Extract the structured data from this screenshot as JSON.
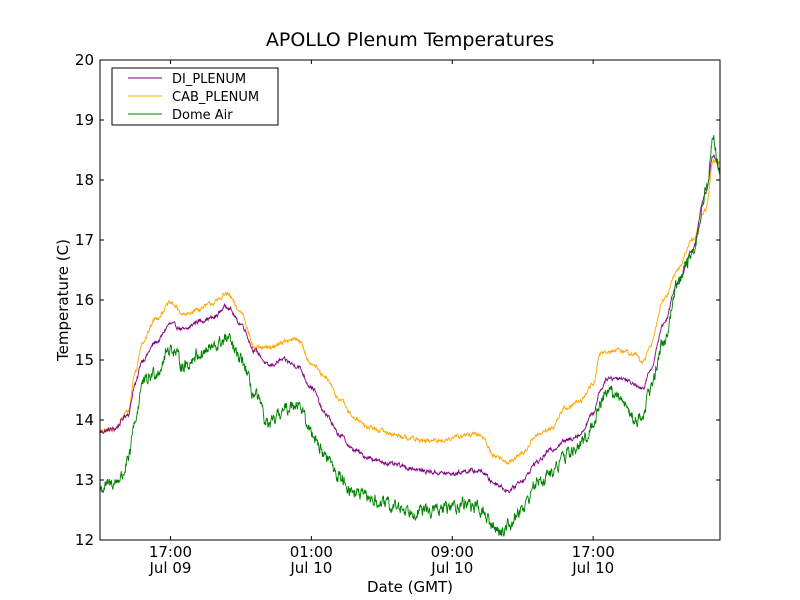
{
  "chart_data": {
    "type": "line",
    "title": "APOLLO Plenum Temperatures",
    "xlabel": "Date (GMT)",
    "ylabel": "Temperature (C)",
    "xlim": [
      0,
      44
    ],
    "ylim": [
      12,
      20
    ],
    "grid": false,
    "legend_position": "top-left",
    "y_ticks": [
      "12",
      "13",
      "14",
      "15",
      "16",
      "17",
      "18",
      "19",
      "20"
    ],
    "x_ticks": [
      {
        "x": 5,
        "line1": "17:00",
        "line2": "Jul 09"
      },
      {
        "x": 15,
        "line1": "01:00",
        "line2": "Jul 10"
      },
      {
        "x": 25,
        "line1": "09:00",
        "line2": "Jul 10"
      },
      {
        "x": 35,
        "line1": "17:00",
        "line2": "Jul 10"
      }
    ],
    "x_units": "hours since 12:00 GMT Jul 09",
    "series": [
      {
        "name": "DI_PLENUM",
        "color": "#800080",
        "noise": 0.03,
        "points": [
          [
            0,
            13.8
          ],
          [
            1,
            13.85
          ],
          [
            2,
            14.1
          ],
          [
            2.5,
            14.6
          ],
          [
            3,
            15.0
          ],
          [
            4,
            15.3
          ],
          [
            5,
            15.6
          ],
          [
            6,
            15.5
          ],
          [
            7,
            15.65
          ],
          [
            8,
            15.7
          ],
          [
            9,
            15.9
          ],
          [
            10,
            15.6
          ],
          [
            11,
            15.15
          ],
          [
            12,
            14.9
          ],
          [
            13,
            15.0
          ],
          [
            14,
            14.9
          ],
          [
            15,
            14.55
          ],
          [
            16,
            14.1
          ],
          [
            17,
            13.75
          ],
          [
            18,
            13.5
          ],
          [
            19,
            13.38
          ],
          [
            20,
            13.3
          ],
          [
            21,
            13.25
          ],
          [
            22,
            13.2
          ],
          [
            23,
            13.15
          ],
          [
            24,
            13.12
          ],
          [
            25,
            13.1
          ],
          [
            26,
            13.15
          ],
          [
            27,
            13.15
          ],
          [
            28,
            12.95
          ],
          [
            29,
            12.82
          ],
          [
            30,
            13.0
          ],
          [
            31,
            13.3
          ],
          [
            32,
            13.5
          ],
          [
            33,
            13.65
          ],
          [
            34,
            13.75
          ],
          [
            35,
            14.1
          ],
          [
            35.5,
            14.5
          ],
          [
            36,
            14.7
          ],
          [
            37,
            14.7
          ],
          [
            38,
            14.6
          ],
          [
            38.5,
            14.5
          ],
          [
            39,
            14.8
          ],
          [
            40,
            15.6
          ],
          [
            41,
            16.3
          ],
          [
            42,
            16.8
          ],
          [
            43,
            17.8
          ],
          [
            43.5,
            18.4
          ],
          [
            44,
            18.2
          ]
        ]
      },
      {
        "name": "CAB_PLENUM",
        "color": "#ffa500",
        "noise": 0.03,
        "points": [
          [
            0,
            13.8
          ],
          [
            1,
            13.85
          ],
          [
            2,
            14.15
          ],
          [
            2.5,
            14.8
          ],
          [
            3,
            15.3
          ],
          [
            4,
            15.7
          ],
          [
            5,
            15.95
          ],
          [
            6,
            15.75
          ],
          [
            7,
            15.85
          ],
          [
            8,
            15.95
          ],
          [
            9,
            16.1
          ],
          [
            10,
            15.8
          ],
          [
            11,
            15.2
          ],
          [
            12,
            15.2
          ],
          [
            13,
            15.3
          ],
          [
            14,
            15.35
          ],
          [
            15,
            14.95
          ],
          [
            16,
            14.7
          ],
          [
            17,
            14.35
          ],
          [
            18,
            14.05
          ],
          [
            19,
            13.88
          ],
          [
            20,
            13.82
          ],
          [
            21,
            13.75
          ],
          [
            22,
            13.7
          ],
          [
            23,
            13.65
          ],
          [
            24,
            13.65
          ],
          [
            25,
            13.7
          ],
          [
            26,
            13.75
          ],
          [
            27,
            13.75
          ],
          [
            28,
            13.4
          ],
          [
            29,
            13.3
          ],
          [
            30,
            13.45
          ],
          [
            31,
            13.75
          ],
          [
            32,
            13.85
          ],
          [
            33,
            14.2
          ],
          [
            34,
            14.3
          ],
          [
            35,
            14.6
          ],
          [
            35.5,
            15.1
          ],
          [
            36,
            15.15
          ],
          [
            37,
            15.15
          ],
          [
            38,
            15.1
          ],
          [
            38.5,
            14.95
          ],
          [
            39,
            15.2
          ],
          [
            40,
            16.0
          ],
          [
            41,
            16.5
          ],
          [
            42,
            17.0
          ],
          [
            43,
            17.5
          ],
          [
            43.5,
            18.3
          ],
          [
            44,
            18.3
          ]
        ]
      },
      {
        "name": "Dome Air",
        "color": "#008000",
        "noise": 0.09,
        "points": [
          [
            0,
            12.85
          ],
          [
            1,
            12.95
          ],
          [
            1.5,
            13.05
          ],
          [
            2,
            13.3
          ],
          [
            2.5,
            14.0
          ],
          [
            3,
            14.6
          ],
          [
            4,
            14.8
          ],
          [
            5,
            15.2
          ],
          [
            6,
            14.9
          ],
          [
            7,
            15.1
          ],
          [
            8,
            15.2
          ],
          [
            9,
            15.35
          ],
          [
            10,
            15.0
          ],
          [
            11,
            14.4
          ],
          [
            12,
            13.9
          ],
          [
            13,
            14.15
          ],
          [
            14,
            14.3
          ],
          [
            15,
            13.8
          ],
          [
            16,
            13.4
          ],
          [
            17,
            13.05
          ],
          [
            18,
            12.8
          ],
          [
            19,
            12.7
          ],
          [
            20,
            12.6
          ],
          [
            21,
            12.55
          ],
          [
            22,
            12.5
          ],
          [
            23,
            12.48
          ],
          [
            24,
            12.5
          ],
          [
            25,
            12.55
          ],
          [
            26,
            12.62
          ],
          [
            27,
            12.5
          ],
          [
            28,
            12.2
          ],
          [
            28.5,
            12.15
          ],
          [
            29,
            12.25
          ],
          [
            30,
            12.55
          ],
          [
            31,
            12.95
          ],
          [
            32,
            13.1
          ],
          [
            33,
            13.4
          ],
          [
            34,
            13.55
          ],
          [
            35,
            13.9
          ],
          [
            35.5,
            14.3
          ],
          [
            36,
            14.5
          ],
          [
            37,
            14.35
          ],
          [
            38,
            14.0
          ],
          [
            38.5,
            14.05
          ],
          [
            39,
            14.5
          ],
          [
            40,
            15.3
          ],
          [
            41,
            16.3
          ],
          [
            42,
            16.7
          ],
          [
            43,
            17.8
          ],
          [
            43.5,
            18.7
          ],
          [
            44,
            18.05
          ]
        ]
      }
    ]
  }
}
